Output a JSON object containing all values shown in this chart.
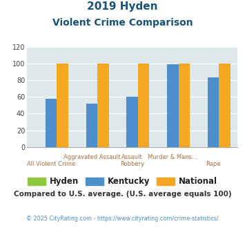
{
  "title_line1": "2019 Hyden",
  "title_line2": "Violent Crime Comparison",
  "hyden_values": [
    0,
    0,
    0,
    0,
    0
  ],
  "kentucky_values": [
    58,
    52,
    60,
    99,
    83
  ],
  "national_values": [
    100,
    100,
    100,
    100,
    100
  ],
  "hyden_color": "#8dc63f",
  "kentucky_color": "#4d8fcc",
  "national_color": "#f5a623",
  "ylim": [
    0,
    120
  ],
  "yticks": [
    0,
    20,
    40,
    60,
    80,
    100,
    120
  ],
  "bg_color": "#dde8ea",
  "title_color": "#1a5276",
  "xlabel_color": "#b07040",
  "footer_text": "Compared to U.S. average. (U.S. average equals 100)",
  "footer_color": "#333333",
  "copyright_text": "© 2025 CityRating.com - https://www.cityrating.com/crime-statistics/",
  "copyright_color": "#4d8fcc",
  "bar_width": 0.28,
  "label_top": [
    "",
    "Aggravated Assault",
    "Assault",
    "Murder & Mans...",
    ""
  ],
  "label_bottom": [
    "All Violent Crime",
    "",
    "Robbery",
    "",
    "Rape"
  ]
}
